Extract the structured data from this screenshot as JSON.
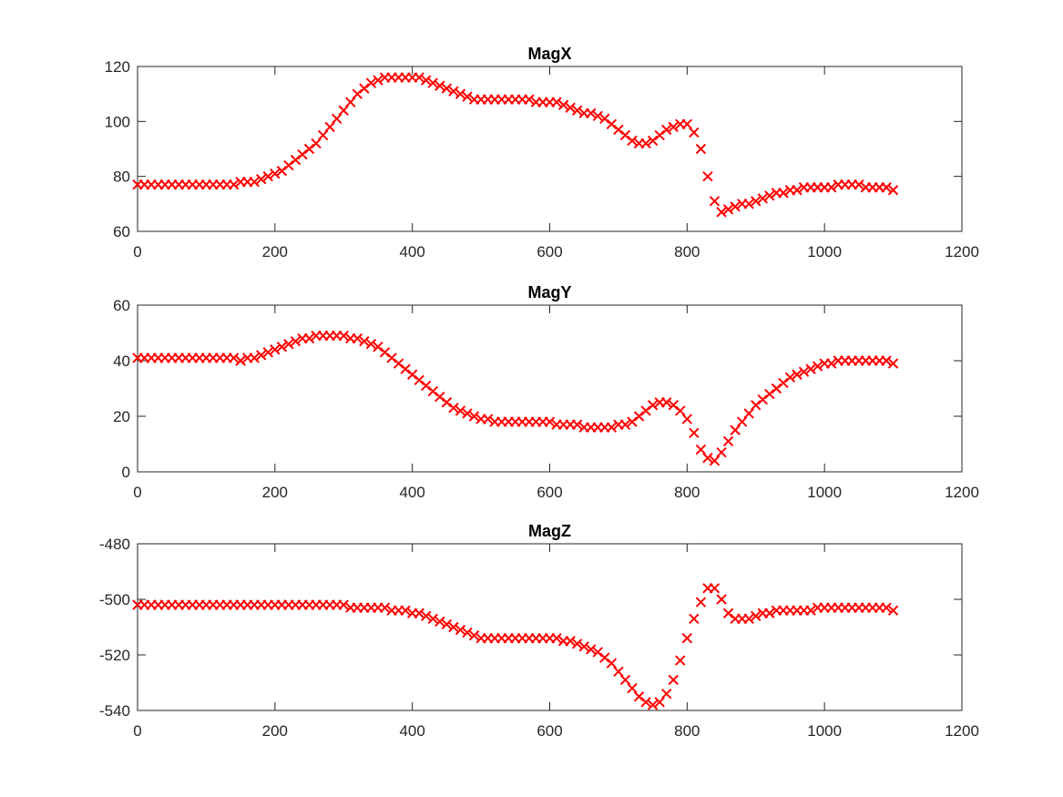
{
  "colors": {
    "marker": "#ff0000",
    "axis": "#262626",
    "background": "#ffffff"
  },
  "chart_data": [
    {
      "type": "scatter",
      "title": "MagX",
      "marker": "x",
      "xlim": [
        0,
        1200
      ],
      "ylim": [
        60,
        120
      ],
      "xticks": [
        0,
        200,
        400,
        600,
        800,
        1000,
        1200
      ],
      "yticks": [
        60,
        80,
        100,
        120
      ],
      "series": [
        {
          "x": [
            0,
            10,
            20,
            30,
            40,
            50,
            60,
            70,
            80,
            90,
            100,
            110,
            120,
            130,
            140,
            150,
            160,
            170,
            180,
            190,
            200,
            210,
            220,
            230,
            240,
            250,
            260,
            270,
            280,
            290,
            300,
            310,
            320,
            330,
            340,
            350,
            360,
            370,
            380,
            390,
            400,
            410,
            420,
            430,
            440,
            450,
            460,
            470,
            480,
            490,
            500,
            510,
            520,
            530,
            540,
            550,
            560,
            570,
            580,
            590,
            600,
            610,
            620,
            630,
            640,
            650,
            660,
            670,
            680,
            690,
            700,
            710,
            720,
            730,
            740,
            750,
            760,
            770,
            780,
            790,
            800,
            810,
            820,
            830,
            840,
            850,
            860,
            870,
            880,
            890,
            900,
            910,
            920,
            930,
            940,
            950,
            960,
            970,
            980,
            990,
            1000,
            1010,
            1020,
            1030,
            1040,
            1050,
            1060,
            1070,
            1080,
            1090,
            1100
          ],
          "y": [
            77,
            77,
            77,
            77,
            77,
            77,
            77,
            77,
            77,
            77,
            77,
            77,
            77,
            77,
            77,
            78,
            78,
            78,
            79,
            80,
            81,
            82,
            84,
            86,
            88,
            90,
            92,
            95,
            98,
            101,
            104,
            107,
            110,
            112,
            114,
            115,
            116,
            116,
            116,
            116,
            116,
            116,
            115,
            114,
            113,
            112,
            111,
            110,
            109,
            108,
            108,
            108,
            108,
            108,
            108,
            108,
            108,
            108,
            107,
            107,
            107,
            107,
            106,
            105,
            104,
            103,
            103,
            102,
            101,
            99,
            97,
            95,
            93,
            92,
            92,
            93,
            95,
            97,
            98,
            99,
            99,
            96,
            90,
            80,
            71,
            67,
            68,
            69,
            70,
            70,
            71,
            72,
            73,
            74,
            74,
            75,
            75,
            76,
            76,
            76,
            76,
            76,
            77,
            77,
            77,
            77,
            76,
            76,
            76,
            76,
            75
          ]
        }
      ]
    },
    {
      "type": "scatter",
      "title": "MagY",
      "marker": "x",
      "xlim": [
        0,
        1200
      ],
      "ylim": [
        0,
        60
      ],
      "xticks": [
        0,
        200,
        400,
        600,
        800,
        1000,
        1200
      ],
      "yticks": [
        0,
        20,
        40,
        60
      ],
      "series": [
        {
          "x": [
            0,
            10,
            20,
            30,
            40,
            50,
            60,
            70,
            80,
            90,
            100,
            110,
            120,
            130,
            140,
            150,
            160,
            170,
            180,
            190,
            200,
            210,
            220,
            230,
            240,
            250,
            260,
            270,
            280,
            290,
            300,
            310,
            320,
            330,
            340,
            350,
            360,
            370,
            380,
            390,
            400,
            410,
            420,
            430,
            440,
            450,
            460,
            470,
            480,
            490,
            500,
            510,
            520,
            530,
            540,
            550,
            560,
            570,
            580,
            590,
            600,
            610,
            620,
            630,
            640,
            650,
            660,
            670,
            680,
            690,
            700,
            710,
            720,
            730,
            740,
            750,
            760,
            770,
            780,
            790,
            800,
            810,
            820,
            830,
            840,
            850,
            860,
            870,
            880,
            890,
            900,
            910,
            920,
            930,
            940,
            950,
            960,
            970,
            980,
            990,
            1000,
            1010,
            1020,
            1030,
            1040,
            1050,
            1060,
            1070,
            1080,
            1090,
            1100
          ],
          "y": [
            41,
            41,
            41,
            41,
            41,
            41,
            41,
            41,
            41,
            41,
            41,
            41,
            41,
            41,
            41,
            40,
            41,
            41,
            42,
            43,
            44,
            45,
            46,
            47,
            48,
            48,
            49,
            49,
            49,
            49,
            49,
            48,
            48,
            47,
            46,
            45,
            43,
            41,
            39,
            37,
            35,
            33,
            31,
            29,
            27,
            25,
            23,
            22,
            21,
            20,
            19,
            19,
            18,
            18,
            18,
            18,
            18,
            18,
            18,
            18,
            18,
            17,
            17,
            17,
            17,
            16,
            16,
            16,
            16,
            16,
            17,
            17,
            18,
            20,
            22,
            24,
            25,
            25,
            24,
            22,
            19,
            14,
            8,
            5,
            4,
            7,
            11,
            15,
            18,
            21,
            24,
            26,
            28,
            30,
            32,
            34,
            35,
            36,
            37,
            38,
            39,
            39,
            40,
            40,
            40,
            40,
            40,
            40,
            40,
            40,
            39
          ]
        }
      ]
    },
    {
      "type": "scatter",
      "title": "MagZ",
      "marker": "x",
      "xlim": [
        0,
        1200
      ],
      "ylim": [
        -540,
        -480
      ],
      "xticks": [
        0,
        200,
        400,
        600,
        800,
        1000,
        1200
      ],
      "yticks": [
        -540,
        -520,
        -500,
        -480
      ],
      "series": [
        {
          "x": [
            0,
            10,
            20,
            30,
            40,
            50,
            60,
            70,
            80,
            90,
            100,
            110,
            120,
            130,
            140,
            150,
            160,
            170,
            180,
            190,
            200,
            210,
            220,
            230,
            240,
            250,
            260,
            270,
            280,
            290,
            300,
            310,
            320,
            330,
            340,
            350,
            360,
            370,
            380,
            390,
            400,
            410,
            420,
            430,
            440,
            450,
            460,
            470,
            480,
            490,
            500,
            510,
            520,
            530,
            540,
            550,
            560,
            570,
            580,
            590,
            600,
            610,
            620,
            630,
            640,
            650,
            660,
            670,
            680,
            690,
            700,
            710,
            720,
            730,
            740,
            750,
            760,
            770,
            780,
            790,
            800,
            810,
            820,
            830,
            840,
            850,
            860,
            870,
            880,
            890,
            900,
            910,
            920,
            930,
            940,
            950,
            960,
            970,
            980,
            990,
            1000,
            1010,
            1020,
            1030,
            1040,
            1050,
            1060,
            1070,
            1080,
            1090,
            1100
          ],
          "y": [
            -502,
            -502,
            -502,
            -502,
            -502,
            -502,
            -502,
            -502,
            -502,
            -502,
            -502,
            -502,
            -502,
            -502,
            -502,
            -502,
            -502,
            -502,
            -502,
            -502,
            -502,
            -502,
            -502,
            -502,
            -502,
            -502,
            -502,
            -502,
            -502,
            -502,
            -502,
            -503,
            -503,
            -503,
            -503,
            -503,
            -503,
            -504,
            -504,
            -504,
            -505,
            -505,
            -506,
            -507,
            -508,
            -509,
            -510,
            -511,
            -512,
            -513,
            -514,
            -514,
            -514,
            -514,
            -514,
            -514,
            -514,
            -514,
            -514,
            -514,
            -514,
            -514,
            -515,
            -515,
            -516,
            -517,
            -518,
            -519,
            -521,
            -523,
            -526,
            -529,
            -532,
            -535,
            -537,
            -538,
            -537,
            -534,
            -529,
            -522,
            -514,
            -507,
            -501,
            -496,
            -496,
            -500,
            -505,
            -507,
            -507,
            -507,
            -506,
            -505,
            -505,
            -504,
            -504,
            -504,
            -504,
            -504,
            -504,
            -503,
            -503,
            -503,
            -503,
            -503,
            -503,
            -503,
            -503,
            -503,
            -503,
            -503,
            -504
          ]
        }
      ]
    }
  ]
}
